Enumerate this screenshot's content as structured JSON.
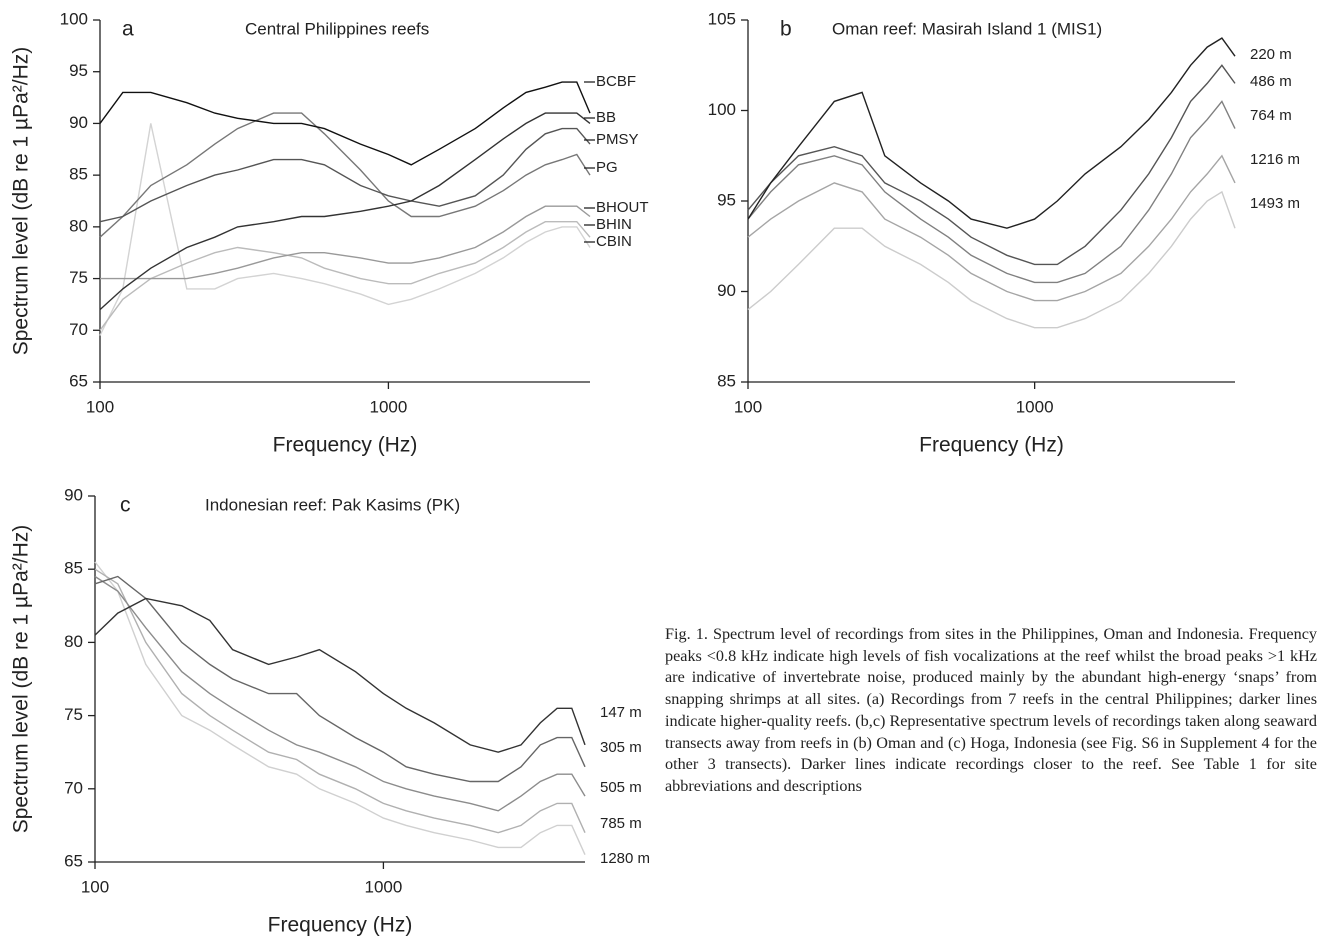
{
  "chart_data": [
    {
      "type": "line",
      "panel": "a",
      "title": "Central Philippines reefs",
      "xlabel": "Frequency (Hz)",
      "ylabel": "Spectrum level (dB re 1 µPa²/Hz)",
      "log_x": true,
      "xlim": [
        100,
        5000
      ],
      "xticks": [
        100,
        1000
      ],
      "ylim": [
        65,
        100
      ],
      "yticks": [
        65,
        70,
        75,
        80,
        85,
        90,
        95,
        100
      ],
      "x": [
        100,
        120,
        150,
        200,
        250,
        300,
        400,
        500,
        600,
        800,
        1000,
        1200,
        1500,
        2000,
        2500,
        3000,
        3500,
        4000,
        4500,
        5000
      ],
      "series": [
        {
          "name": "BCBF",
          "color": "#111111",
          "values": [
            90,
            93,
            93,
            92,
            91,
            90.5,
            90,
            90,
            89.5,
            88,
            87,
            86,
            87.5,
            89.5,
            91.5,
            93,
            93.5,
            94,
            94,
            91
          ]
        },
        {
          "name": "BB",
          "color": "#333333",
          "values": [
            72,
            74,
            76,
            78,
            79,
            80,
            80.5,
            81,
            81,
            81.5,
            82,
            82.5,
            84,
            86.5,
            88.5,
            90,
            91,
            91,
            91,
            90
          ]
        },
        {
          "name": "PMSY",
          "color": "#555555",
          "values": [
            80.5,
            81,
            82.5,
            84,
            85,
            85.5,
            86.5,
            86.5,
            86,
            84,
            83,
            82.5,
            82,
            83,
            85,
            87.5,
            89,
            89.5,
            89.5,
            88
          ]
        },
        {
          "name": "PG",
          "color": "#777777",
          "values": [
            79,
            81,
            84,
            86,
            88,
            89.5,
            91,
            91,
            89,
            85.5,
            82.5,
            81,
            81,
            82,
            83.5,
            85,
            86,
            86.5,
            87,
            85
          ]
        },
        {
          "name": "BHOUT",
          "color": "#999999",
          "values": [
            75,
            75,
            75,
            75,
            75.5,
            76,
            77,
            77.5,
            77.5,
            77,
            76.5,
            76.5,
            77,
            78,
            79.5,
            81,
            82,
            82,
            82,
            81
          ]
        },
        {
          "name": "BHIN",
          "color": "#bbbbbb",
          "values": [
            70,
            73,
            75,
            76.5,
            77.5,
            78,
            77.5,
            77,
            76,
            75,
            74.5,
            74.5,
            75.5,
            76.5,
            78,
            79.5,
            80.5,
            80.5,
            80.5,
            79
          ]
        },
        {
          "name": "CBIN",
          "color": "#d3d3d3",
          "values": [
            69.5,
            74,
            90,
            74,
            74,
            75,
            75.5,
            75,
            74.5,
            73.5,
            72.5,
            73,
            74,
            75.5,
            77,
            78.5,
            79.5,
            80,
            80,
            78
          ]
        }
      ]
    },
    {
      "type": "line",
      "panel": "b",
      "title": "Oman reef: Masirah Island 1 (MIS1)",
      "xlabel": "Frequency (Hz)",
      "log_x": true,
      "xlim": [
        100,
        5000
      ],
      "xticks": [
        100,
        1000
      ],
      "ylim": [
        85,
        105
      ],
      "yticks": [
        85,
        90,
        95,
        100,
        105
      ],
      "x": [
        100,
        120,
        150,
        200,
        250,
        300,
        400,
        500,
        600,
        800,
        1000,
        1200,
        1500,
        2000,
        2500,
        3000,
        3500,
        4000,
        4500,
        5000
      ],
      "series": [
        {
          "name": "220 m",
          "color": "#222222",
          "values": [
            94,
            96,
            98,
            100.5,
            101,
            97.5,
            96,
            95,
            94,
            93.5,
            94,
            95,
            96.5,
            98,
            99.5,
            101,
            102.5,
            103.5,
            104,
            103
          ]
        },
        {
          "name": "486 m",
          "color": "#555555",
          "values": [
            94.5,
            96,
            97.5,
            98,
            97.5,
            96,
            95,
            94,
            93,
            92,
            91.5,
            91.5,
            92.5,
            94.5,
            96.5,
            98.5,
            100.5,
            101.5,
            102.5,
            101.5
          ]
        },
        {
          "name": "764 m",
          "color": "#808080",
          "values": [
            94,
            95.5,
            97,
            97.5,
            97,
            95.5,
            94,
            93,
            92,
            91,
            90.5,
            90.5,
            91,
            92.5,
            94.5,
            96.5,
            98.5,
            99.5,
            100.5,
            99
          ]
        },
        {
          "name": "1216 m",
          "color": "#a5a5a5",
          "values": [
            93,
            94,
            95,
            96,
            95.5,
            94,
            93,
            92,
            91,
            90,
            89.5,
            89.5,
            90,
            91,
            92.5,
            94,
            95.5,
            96.5,
            97.5,
            96
          ]
        },
        {
          "name": "1493 m",
          "color": "#cccccc",
          "values": [
            89,
            90,
            91.5,
            93.5,
            93.5,
            92.5,
            91.5,
            90.5,
            89.5,
            88.5,
            88,
            88,
            88.5,
            89.5,
            91,
            92.5,
            94,
            95,
            95.5,
            93.5
          ]
        }
      ]
    },
    {
      "type": "line",
      "panel": "c",
      "title": "Indonesian reef: Pak Kasims (PK)",
      "xlabel": "Frequency (Hz)",
      "ylabel": "Spectrum level (dB re 1 µPa²/Hz)",
      "log_x": true,
      "xlim": [
        100,
        5000
      ],
      "xticks": [
        100,
        1000
      ],
      "ylim": [
        65,
        90
      ],
      "yticks": [
        65,
        70,
        75,
        80,
        85,
        90
      ],
      "x": [
        100,
        120,
        150,
        200,
        250,
        300,
        400,
        500,
        600,
        800,
        1000,
        1200,
        1500,
        2000,
        2500,
        3000,
        3500,
        4000,
        4500,
        5000
      ],
      "series": [
        {
          "name": "147 m",
          "color": "#333333",
          "values": [
            80.5,
            82,
            83,
            82.5,
            81.5,
            79.5,
            78.5,
            79,
            79.5,
            78,
            76.5,
            75.5,
            74.5,
            73,
            72.5,
            73,
            74.5,
            75.5,
            75.5,
            73
          ]
        },
        {
          "name": "305 m",
          "color": "#666666",
          "values": [
            84,
            84.5,
            83,
            80,
            78.5,
            77.5,
            76.5,
            76.5,
            75,
            73.5,
            72.5,
            71.5,
            71,
            70.5,
            70.5,
            71.5,
            73,
            73.5,
            73.5,
            71.5
          ]
        },
        {
          "name": "505 m",
          "color": "#8c8c8c",
          "values": [
            84.5,
            83.5,
            81,
            78,
            76.5,
            75.5,
            74,
            73,
            72.5,
            71.5,
            70.5,
            70,
            69.5,
            69,
            68.5,
            69.5,
            70.5,
            71,
            71,
            69.5
          ]
        },
        {
          "name": "785 m",
          "color": "#b0b0b0",
          "values": [
            85,
            84,
            80,
            76.5,
            75,
            74,
            72.5,
            72,
            71,
            70,
            69,
            68.5,
            68,
            67.5,
            67,
            67.5,
            68.5,
            69,
            69,
            67
          ]
        },
        {
          "name": "1280 m",
          "color": "#d0d0d0",
          "values": [
            85.5,
            83.5,
            78.5,
            75,
            74,
            73,
            71.5,
            71,
            70,
            69,
            68,
            67.5,
            67,
            66.5,
            66,
            66,
            67,
            67.5,
            67.5,
            65.5
          ]
        }
      ]
    }
  ],
  "caption": "Fig. 1. Spectrum level of recordings from sites in the Philippines, Oman and Indonesia. Frequency peaks <0.8 kHz indicate high levels of fish vocalizations at the reef whilst the broad peaks >1 kHz are indicative of invertebrate noise, produced mainly by the abundant high-energy ‘snaps’ from snapping shrimps at all sites. (a) Recordings from 7 reefs in the central Philippines; darker lines indicate higher-quality reefs. (b,c) Representative spectrum levels of recordings taken along seaward transects away from reefs in (b) Oman and (c) Hoga, Indonesia (see Fig. S6 in Supplement 4 for the other 3 transects). Darker lines indicate recordings closer to the reef. See Table 1 for site abbreviations and descriptions"
}
